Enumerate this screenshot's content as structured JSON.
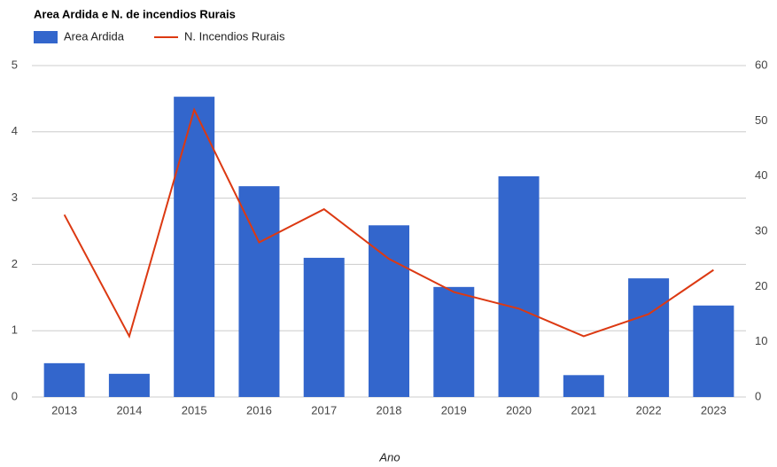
{
  "chart_data": {
    "type": "bar+line",
    "title": "Area Ardida e N. de incendios Rurais",
    "x_label": "Ano",
    "categories": [
      "2013",
      "2014",
      "2015",
      "2016",
      "2017",
      "2018",
      "2019",
      "2020",
      "2021",
      "2022",
      "2023"
    ],
    "series": [
      {
        "name": "Area Ardida",
        "type": "bar",
        "color": "#3366cc",
        "axis": "y",
        "values": [
          0.51,
          0.35,
          4.53,
          3.18,
          2.1,
          2.59,
          1.66,
          3.33,
          0.33,
          1.79,
          1.38
        ]
      },
      {
        "name": "N. Incendios Rurais",
        "type": "line",
        "color": "#dc3912",
        "axis": "y2",
        "values": [
          33,
          11,
          52,
          28,
          34,
          25,
          19,
          16,
          11,
          15,
          23
        ]
      }
    ],
    "ylim": [
      0,
      5
    ],
    "yticks": [
      0,
      1,
      2,
      3,
      4,
      5
    ],
    "y2lim": [
      0,
      60
    ],
    "y2ticks": [
      0,
      10,
      20,
      30,
      40,
      50,
      60
    ],
    "grid": true,
    "legend": "top-left"
  }
}
